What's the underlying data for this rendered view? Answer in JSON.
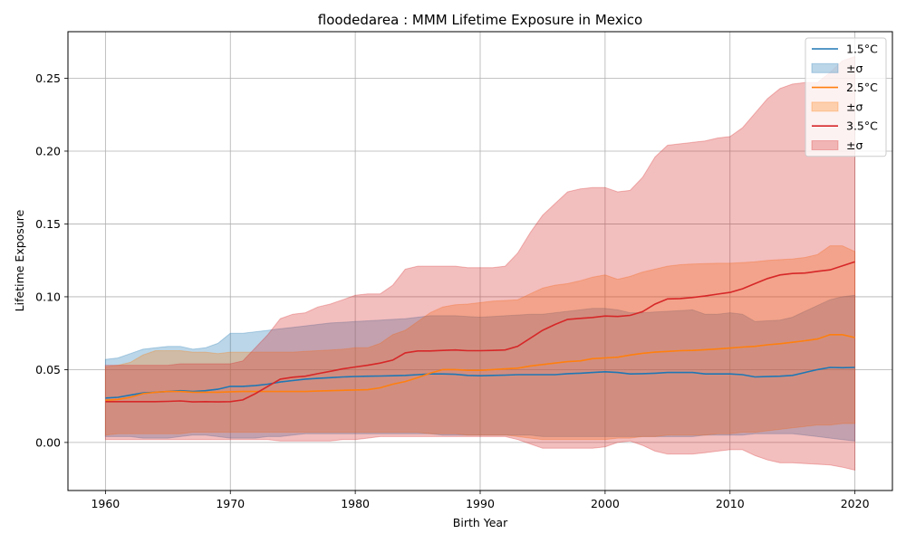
{
  "chart_data": {
    "type": "line",
    "title": "floodedarea : MMM Lifetime Exposure in Mexico",
    "xlabel": "Birth Year",
    "ylabel": "Lifetime Exposure",
    "xlim": [
      1957,
      2023
    ],
    "ylim": [
      -0.033,
      0.282
    ],
    "xticks": [
      1960,
      1970,
      1980,
      1990,
      2000,
      2010,
      2020
    ],
    "xtick_labels": [
      "1960",
      "1970",
      "1980",
      "1990",
      "2000",
      "2010",
      "2020"
    ],
    "yticks": [
      0.0,
      0.05,
      0.1,
      0.15,
      0.2,
      0.25
    ],
    "ytick_labels": [
      "0.00",
      "0.05",
      "0.10",
      "0.15",
      "0.20",
      "0.25"
    ],
    "grid": true,
    "legend_position": "top-right",
    "legend": [
      "1.5°C",
      "±σ",
      "2.5°C",
      "±σ",
      "3.5°C",
      "±σ"
    ],
    "x": [
      1960,
      1961,
      1962,
      1963,
      1964,
      1965,
      1966,
      1967,
      1968,
      1969,
      1970,
      1971,
      1972,
      1973,
      1974,
      1975,
      1976,
      1977,
      1978,
      1979,
      1980,
      1981,
      1982,
      1983,
      1984,
      1985,
      1986,
      1987,
      1988,
      1989,
      1990,
      1991,
      1992,
      1993,
      1994,
      1995,
      1996,
      1997,
      1998,
      1999,
      2000,
      2001,
      2002,
      2003,
      2004,
      2005,
      2006,
      2007,
      2008,
      2009,
      2010,
      2011,
      2012,
      2013,
      2014,
      2015,
      2016,
      2017,
      2018,
      2019,
      2020
    ],
    "series": [
      {
        "name": "1.5°C",
        "band_label": "±σ",
        "color": "#1f77b4",
        "band_color": "#1f77b4",
        "values": [
          0.0305,
          0.031,
          0.0325,
          0.034,
          0.0345,
          0.035,
          0.0355,
          0.035,
          0.0355,
          0.0365,
          0.0385,
          0.0385,
          0.039,
          0.04,
          0.0415,
          0.0425,
          0.0435,
          0.044,
          0.0445,
          0.045,
          0.0453,
          0.0455,
          0.0456,
          0.0458,
          0.046,
          0.0465,
          0.047,
          0.047,
          0.0468,
          0.046,
          0.0458,
          0.046,
          0.0462,
          0.0465,
          0.0465,
          0.0465,
          0.0465,
          0.0472,
          0.0475,
          0.048,
          0.0485,
          0.048,
          0.047,
          0.0472,
          0.0475,
          0.048,
          0.048,
          0.048,
          0.047,
          0.047,
          0.047,
          0.0465,
          0.045,
          0.0452,
          0.0455,
          0.046,
          0.048,
          0.05,
          0.0515,
          0.0513,
          0.0515
        ],
        "upper": [
          0.057,
          0.058,
          0.061,
          0.064,
          0.065,
          0.066,
          0.066,
          0.064,
          0.065,
          0.068,
          0.075,
          0.075,
          0.076,
          0.077,
          0.078,
          0.079,
          0.08,
          0.081,
          0.082,
          0.0825,
          0.083,
          0.0835,
          0.084,
          0.0845,
          0.085,
          0.086,
          0.087,
          0.087,
          0.087,
          0.0865,
          0.086,
          0.0865,
          0.087,
          0.0875,
          0.088,
          0.088,
          0.089,
          0.09,
          0.091,
          0.092,
          0.092,
          0.091,
          0.089,
          0.089,
          0.0895,
          0.09,
          0.0905,
          0.091,
          0.088,
          0.088,
          0.089,
          0.088,
          0.083,
          0.0835,
          0.084,
          0.086,
          0.09,
          0.094,
          0.098,
          0.1,
          0.101
        ],
        "lower": [
          0.004,
          0.004,
          0.004,
          0.003,
          0.003,
          0.003,
          0.004,
          0.005,
          0.005,
          0.004,
          0.003,
          0.003,
          0.003,
          0.004,
          0.004,
          0.005,
          0.006,
          0.006,
          0.006,
          0.006,
          0.006,
          0.006,
          0.006,
          0.006,
          0.006,
          0.006,
          0.006,
          0.005,
          0.005,
          0.005,
          0.005,
          0.005,
          0.005,
          0.005,
          0.005,
          0.004,
          0.004,
          0.004,
          0.004,
          0.004,
          0.004,
          0.004,
          0.004,
          0.004,
          0.004,
          0.004,
          0.004,
          0.004,
          0.005,
          0.005,
          0.005,
          0.005,
          0.006,
          0.006,
          0.006,
          0.006,
          0.005,
          0.004,
          0.003,
          0.002,
          0.001
        ]
      },
      {
        "name": "2.5°C",
        "band_label": "±σ",
        "color": "#ff7f0e",
        "band_color": "#ff7f0e",
        "values": [
          0.029,
          0.0295,
          0.031,
          0.0335,
          0.0345,
          0.035,
          0.035,
          0.0345,
          0.0345,
          0.0345,
          0.0348,
          0.035,
          0.035,
          0.035,
          0.035,
          0.035,
          0.035,
          0.0353,
          0.0355,
          0.0358,
          0.036,
          0.0362,
          0.0375,
          0.04,
          0.0418,
          0.0445,
          0.0475,
          0.05,
          0.05,
          0.0495,
          0.0495,
          0.05,
          0.0505,
          0.051,
          0.0525,
          0.0535,
          0.0545,
          0.0555,
          0.056,
          0.0575,
          0.058,
          0.0585,
          0.06,
          0.0612,
          0.062,
          0.0625,
          0.063,
          0.0632,
          0.0637,
          0.0642,
          0.0648,
          0.0655,
          0.066,
          0.067,
          0.0678,
          0.0688,
          0.0698,
          0.071,
          0.074,
          0.074,
          0.072
        ],
        "upper": [
          0.052,
          0.053,
          0.055,
          0.06,
          0.063,
          0.063,
          0.063,
          0.062,
          0.062,
          0.061,
          0.062,
          0.062,
          0.062,
          0.062,
          0.062,
          0.062,
          0.0625,
          0.063,
          0.0635,
          0.064,
          0.065,
          0.065,
          0.068,
          0.074,
          0.077,
          0.083,
          0.089,
          0.093,
          0.0945,
          0.095,
          0.096,
          0.097,
          0.0975,
          0.098,
          0.102,
          0.106,
          0.108,
          0.109,
          0.111,
          0.1135,
          0.115,
          0.112,
          0.114,
          0.117,
          0.119,
          0.121,
          0.122,
          0.1225,
          0.1228,
          0.123,
          0.123,
          0.1235,
          0.124,
          0.125,
          0.1255,
          0.126,
          0.127,
          0.129,
          0.135,
          0.135,
          0.131
        ],
        "lower": [
          0.005,
          0.006,
          0.006,
          0.006,
          0.006,
          0.006,
          0.006,
          0.007,
          0.007,
          0.007,
          0.007,
          0.007,
          0.007,
          0.007,
          0.007,
          0.007,
          0.007,
          0.007,
          0.007,
          0.007,
          0.007,
          0.007,
          0.007,
          0.007,
          0.007,
          0.007,
          0.006,
          0.006,
          0.006,
          0.005,
          0.005,
          0.005,
          0.005,
          0.004,
          0.003,
          0.002,
          0.002,
          0.002,
          0.002,
          0.002,
          0.002,
          0.003,
          0.003,
          0.004,
          0.004,
          0.005,
          0.005,
          0.005,
          0.005,
          0.006,
          0.006,
          0.007,
          0.007,
          0.008,
          0.009,
          0.01,
          0.011,
          0.012,
          0.012,
          0.013,
          0.013
        ]
      },
      {
        "name": "3.5°C",
        "band_label": "±σ",
        "color": "#d62728",
        "band_color": "#d62728",
        "values": [
          0.028,
          0.028,
          0.028,
          0.028,
          0.028,
          0.0282,
          0.0285,
          0.0278,
          0.028,
          0.0278,
          0.028,
          0.0292,
          0.0335,
          0.0385,
          0.0435,
          0.0448,
          0.0455,
          0.0472,
          0.0488,
          0.0505,
          0.0518,
          0.053,
          0.0545,
          0.0565,
          0.0615,
          0.0628,
          0.0628,
          0.0632,
          0.0635,
          0.063,
          0.063,
          0.0632,
          0.0635,
          0.066,
          0.0715,
          0.077,
          0.081,
          0.0845,
          0.0852,
          0.0858,
          0.0868,
          0.0865,
          0.0872,
          0.0898,
          0.095,
          0.0985,
          0.0988,
          0.0995,
          0.1005,
          0.1018,
          0.103,
          0.1055,
          0.109,
          0.1125,
          0.115,
          0.116,
          0.1163,
          0.1175,
          0.1185,
          0.1212,
          0.124
        ],
        "upper": [
          0.053,
          0.053,
          0.053,
          0.053,
          0.053,
          0.053,
          0.054,
          0.054,
          0.054,
          0.054,
          0.054,
          0.056,
          0.065,
          0.074,
          0.085,
          0.088,
          0.089,
          0.093,
          0.095,
          0.098,
          0.101,
          0.102,
          0.102,
          0.108,
          0.119,
          0.121,
          0.121,
          0.121,
          0.121,
          0.12,
          0.12,
          0.12,
          0.121,
          0.13,
          0.144,
          0.156,
          0.164,
          0.172,
          0.174,
          0.175,
          0.175,
          0.172,
          0.173,
          0.182,
          0.196,
          0.204,
          0.205,
          0.206,
          0.207,
          0.209,
          0.21,
          0.216,
          0.226,
          0.236,
          0.243,
          0.246,
          0.247,
          0.247,
          0.254,
          0.262,
          0.265
        ],
        "lower": [
          0.002,
          0.002,
          0.002,
          0.002,
          0.002,
          0.002,
          0.002,
          0.002,
          0.002,
          0.002,
          0.002,
          0.002,
          0.002,
          0.002,
          0.001,
          0.001,
          0.001,
          0.001,
          0.001,
          0.002,
          0.002,
          0.003,
          0.004,
          0.004,
          0.004,
          0.004,
          0.004,
          0.004,
          0.004,
          0.004,
          0.004,
          0.004,
          0.004,
          0.002,
          -0.001,
          -0.004,
          -0.004,
          -0.004,
          -0.004,
          -0.004,
          -0.003,
          0.0,
          0.001,
          -0.002,
          -0.006,
          -0.008,
          -0.008,
          -0.008,
          -0.007,
          -0.006,
          -0.005,
          -0.005,
          -0.009,
          -0.012,
          -0.014,
          -0.014,
          -0.0145,
          -0.015,
          -0.0155,
          -0.017,
          -0.019
        ]
      }
    ]
  }
}
